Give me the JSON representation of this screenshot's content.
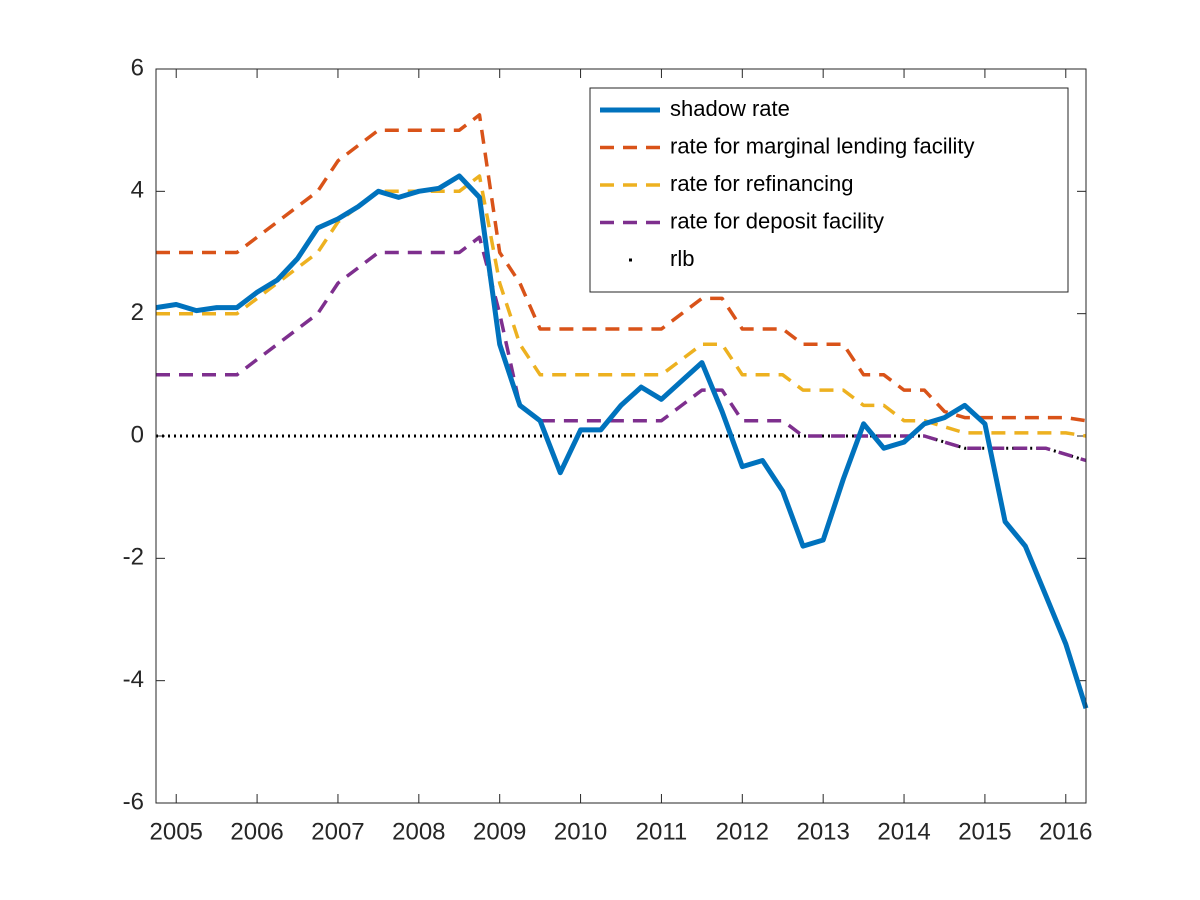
{
  "chart_data": {
    "type": "line",
    "x": [
      2004.75,
      2005,
      2005.25,
      2005.5,
      2005.75,
      2006,
      2006.25,
      2006.5,
      2006.75,
      2007,
      2007.25,
      2007.5,
      2007.75,
      2008,
      2008.25,
      2008.5,
      2008.75,
      2009,
      2009.25,
      2009.5,
      2009.75,
      2010,
      2010.25,
      2010.5,
      2010.75,
      2011,
      2011.25,
      2011.5,
      2011.75,
      2012,
      2012.25,
      2012.5,
      2012.75,
      2013,
      2013.25,
      2013.5,
      2013.75,
      2014,
      2014.25,
      2014.5,
      2014.75,
      2015,
      2015.25,
      2015.5,
      2015.75,
      2016,
      2016.25
    ],
    "series": [
      {
        "name": "shadow rate",
        "color": "#0072bd",
        "style": "solid",
        "values": [
          2.1,
          2.15,
          2.05,
          2.1,
          2.1,
          2.35,
          2.55,
          2.9,
          3.4,
          3.55,
          3.75,
          4.0,
          3.9,
          4.0,
          4.05,
          4.25,
          3.9,
          1.5,
          0.5,
          0.25,
          -0.6,
          0.1,
          0.1,
          0.5,
          0.8,
          0.6,
          0.9,
          1.2,
          0.4,
          -0.5,
          -0.4,
          -0.9,
          -1.8,
          -1.7,
          -0.7,
          0.2,
          -0.2,
          -0.1,
          0.2,
          0.3,
          0.5,
          0.2,
          -1.4,
          -1.8,
          -2.6,
          -3.4,
          -4.45
        ]
      },
      {
        "name": "rate for marginal lending facility",
        "color": "#d95319",
        "style": "dashed",
        "values": [
          3,
          3,
          3,
          3,
          3,
          3.25,
          3.5,
          3.75,
          4,
          4.5,
          4.75,
          5,
          5,
          5,
          5,
          5,
          5.25,
          3,
          2.5,
          1.75,
          1.75,
          1.75,
          1.75,
          1.75,
          1.75,
          1.75,
          2,
          2.25,
          2.25,
          1.75,
          1.75,
          1.75,
          1.5,
          1.5,
          1.5,
          1,
          1,
          0.75,
          0.75,
          0.4,
          0.3,
          0.3,
          0.3,
          0.3,
          0.3,
          0.3,
          0.25
        ]
      },
      {
        "name": "rate for refinancing",
        "color": "#edb120",
        "style": "dashed",
        "values": [
          2,
          2,
          2,
          2,
          2,
          2.25,
          2.5,
          2.75,
          3,
          3.5,
          3.75,
          4,
          4,
          4,
          4,
          4,
          4.25,
          2.5,
          1.5,
          1,
          1,
          1,
          1,
          1,
          1,
          1,
          1.25,
          1.5,
          1.5,
          1,
          1,
          1,
          0.75,
          0.75,
          0.75,
          0.5,
          0.5,
          0.25,
          0.25,
          0.15,
          0.05,
          0.05,
          0.05,
          0.05,
          0.05,
          0.05,
          0
        ]
      },
      {
        "name": "rate for deposit facility",
        "color": "#7e2f8e",
        "style": "dashed",
        "values": [
          1,
          1,
          1,
          1,
          1,
          1.25,
          1.5,
          1.75,
          2,
          2.5,
          2.75,
          3,
          3,
          3,
          3,
          3,
          3.25,
          2,
          0.5,
          0.25,
          0.25,
          0.25,
          0.25,
          0.25,
          0.25,
          0.25,
          0.5,
          0.75,
          0.75,
          0.25,
          0.25,
          0.25,
          0,
          0,
          0,
          0,
          0,
          0,
          0,
          -0.1,
          -0.2,
          -0.2,
          -0.2,
          -0.2,
          -0.2,
          -0.3,
          -0.4
        ]
      },
      {
        "name": "rlb",
        "color": "#000000",
        "style": "dotted",
        "values": [
          0,
          0,
          0,
          0,
          0,
          0,
          0,
          0,
          0,
          0,
          0,
          0,
          0,
          0,
          0,
          0,
          0,
          0,
          0,
          0,
          0,
          0,
          0,
          0,
          0,
          0,
          0,
          0,
          0,
          0,
          0,
          0,
          0,
          0,
          0,
          0,
          0,
          0,
          0,
          -0.1,
          -0.2,
          -0.2,
          -0.2,
          -0.2,
          -0.2,
          -0.3,
          -0.4
        ]
      }
    ],
    "xlim": [
      2004.75,
      2016.25
    ],
    "xticks": [
      2005,
      2006,
      2007,
      2008,
      2009,
      2010,
      2011,
      2012,
      2013,
      2014,
      2015,
      2016
    ],
    "ylim": [
      -6,
      6
    ],
    "yticks": [
      -6,
      -4,
      -2,
      0,
      2,
      4,
      6
    ],
    "legend": "top-right",
    "grid": false
  }
}
